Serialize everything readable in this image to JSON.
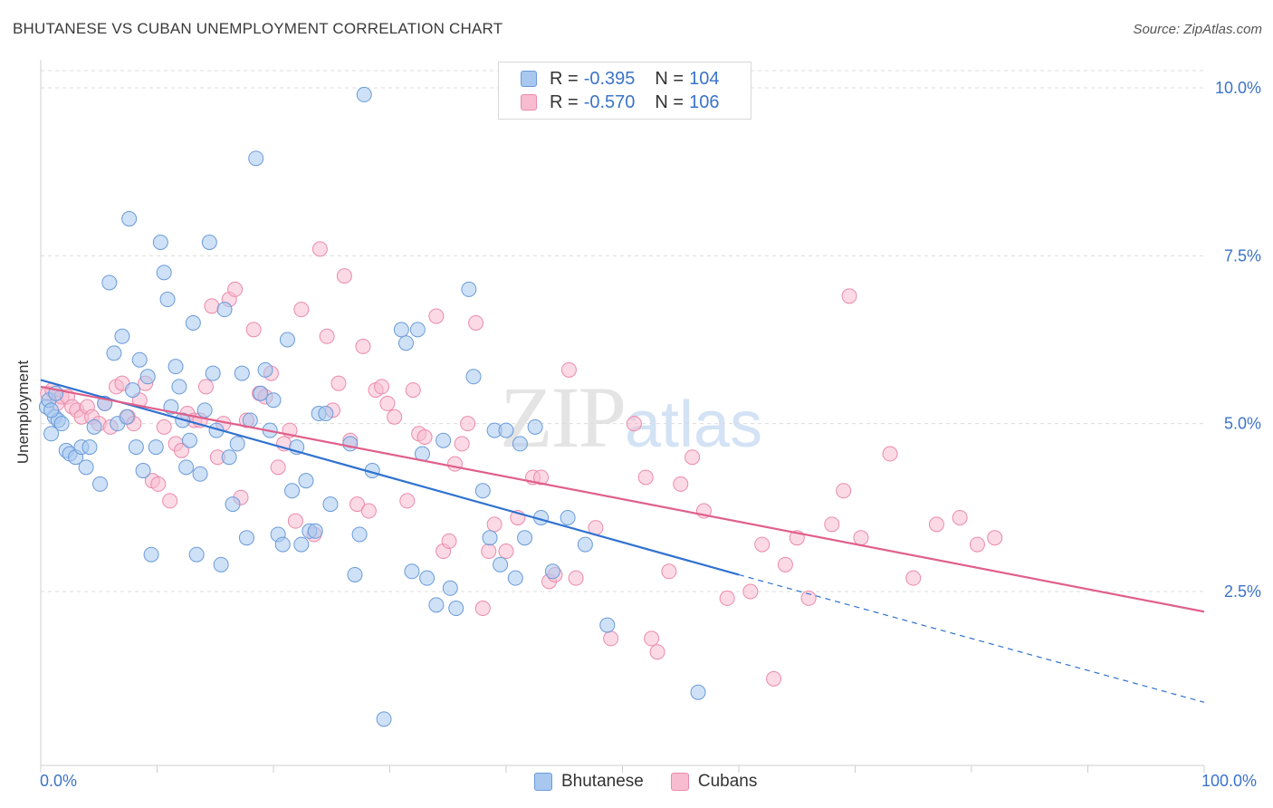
{
  "title": "BHUTANESE VS CUBAN UNEMPLOYMENT CORRELATION CHART",
  "source": "Source: ZipAtlas.com",
  "watermark": {
    "zip": "ZIP",
    "atlas": "atlas"
  },
  "legend_top": [
    {
      "r_label": "R = ",
      "r_value": "-0.395",
      "n_label": "N = ",
      "n_value": "104"
    },
    {
      "r_label": "R = ",
      "r_value": "-0.570",
      "n_label": "N = ",
      "n_value": "106"
    }
  ],
  "colors": {
    "bhutanese_fill": "#a8c8f0",
    "bhutanese_stroke": "#6a9bd8",
    "bhutanese_line": "#2f72d0",
    "cubans_fill": "#f8bcd0",
    "cubans_stroke": "#ec8aaa",
    "cubans_line": "#e0608a",
    "grid": "#dcdcdc",
    "tick_text": "#3b73c9"
  },
  "chart_data": {
    "type": "scatter",
    "title": "BHUTANESE VS CUBAN UNEMPLOYMENT CORRELATION CHART",
    "xlabel": "",
    "ylabel": "Unemployment",
    "xlim": [
      0,
      100
    ],
    "ylim": [
      0,
      10.5
    ],
    "x_tick_labels": [
      "0.0%",
      "100.0%"
    ],
    "y_ticks": [
      2.5,
      5.0,
      7.5,
      10.0
    ],
    "y_tick_labels": [
      "2.5%",
      "5.0%",
      "7.5%",
      "10.0%"
    ],
    "grid": "horizontal dashed",
    "legend": "top-center and bottom-center",
    "series": [
      {
        "name": "Bhutanese",
        "r": -0.395,
        "n": 104,
        "trend": {
          "x0": 0,
          "y0": 5.65,
          "x1": 60,
          "y1": 2.75,
          "dash_to_x": 100,
          "dash_to_y": 0.85
        },
        "points": [
          [
            0.5,
            5.25
          ],
          [
            0.7,
            5.35
          ],
          [
            0.9,
            4.85
          ],
          [
            1.2,
            5.1
          ],
          [
            1.5,
            5.05
          ],
          [
            1.8,
            5.0
          ],
          [
            2.2,
            4.6
          ],
          [
            2.5,
            4.55
          ],
          [
            3.0,
            4.5
          ],
          [
            3.5,
            4.65
          ],
          [
            3.9,
            4.35
          ],
          [
            4.2,
            4.65
          ],
          [
            4.6,
            4.95
          ],
          [
            5.1,
            4.1
          ],
          [
            5.5,
            5.3
          ],
          [
            5.9,
            7.1
          ],
          [
            6.3,
            6.05
          ],
          [
            6.6,
            5.0
          ],
          [
            7.0,
            6.3
          ],
          [
            7.4,
            5.1
          ],
          [
            7.6,
            8.05
          ],
          [
            7.9,
            5.5
          ],
          [
            8.2,
            4.65
          ],
          [
            8.5,
            5.95
          ],
          [
            8.8,
            4.3
          ],
          [
            9.2,
            5.7
          ],
          [
            9.5,
            3.05
          ],
          [
            9.9,
            4.65
          ],
          [
            10.3,
            7.7
          ],
          [
            10.6,
            7.25
          ],
          [
            10.9,
            6.85
          ],
          [
            11.2,
            5.25
          ],
          [
            11.6,
            5.85
          ],
          [
            11.9,
            5.55
          ],
          [
            12.2,
            5.05
          ],
          [
            12.5,
            4.35
          ],
          [
            12.8,
            4.75
          ],
          [
            13.1,
            6.5
          ],
          [
            13.4,
            3.05
          ],
          [
            13.7,
            4.25
          ],
          [
            14.1,
            5.2
          ],
          [
            14.5,
            7.7
          ],
          [
            14.8,
            5.75
          ],
          [
            15.1,
            4.9
          ],
          [
            15.5,
            2.9
          ],
          [
            15.8,
            6.7
          ],
          [
            16.2,
            4.5
          ],
          [
            16.5,
            3.8
          ],
          [
            16.9,
            4.7
          ],
          [
            17.3,
            5.75
          ],
          [
            17.7,
            3.3
          ],
          [
            18.0,
            5.05
          ],
          [
            18.5,
            8.95
          ],
          [
            18.9,
            5.45
          ],
          [
            19.3,
            5.8
          ],
          [
            19.7,
            4.9
          ],
          [
            20.0,
            5.35
          ],
          [
            20.4,
            3.35
          ],
          [
            20.8,
            3.2
          ],
          [
            21.2,
            6.25
          ],
          [
            21.6,
            4.0
          ],
          [
            22.0,
            4.65
          ],
          [
            22.4,
            3.2
          ],
          [
            22.8,
            4.15
          ],
          [
            23.1,
            3.4
          ],
          [
            23.6,
            3.4
          ],
          [
            23.9,
            5.15
          ],
          [
            24.5,
            5.15
          ],
          [
            24.9,
            3.8
          ],
          [
            26.6,
            4.7
          ],
          [
            27.0,
            2.75
          ],
          [
            27.4,
            3.35
          ],
          [
            27.8,
            9.9
          ],
          [
            28.5,
            4.3
          ],
          [
            29.5,
            0.6
          ],
          [
            31.0,
            6.4
          ],
          [
            31.4,
            6.2
          ],
          [
            31.9,
            2.8
          ],
          [
            32.4,
            6.4
          ],
          [
            32.8,
            4.55
          ],
          [
            33.2,
            2.7
          ],
          [
            34.0,
            2.3
          ],
          [
            34.6,
            4.75
          ],
          [
            35.2,
            2.55
          ],
          [
            35.7,
            2.25
          ],
          [
            36.8,
            7.0
          ],
          [
            37.2,
            5.7
          ],
          [
            38.0,
            4.0
          ],
          [
            38.6,
            3.3
          ],
          [
            39.0,
            4.9
          ],
          [
            39.5,
            2.9
          ],
          [
            40.0,
            4.9
          ],
          [
            40.8,
            2.7
          ],
          [
            41.2,
            4.7
          ],
          [
            41.6,
            3.3
          ],
          [
            42.5,
            4.95
          ],
          [
            43.0,
            3.6
          ],
          [
            44.0,
            2.8
          ],
          [
            45.3,
            3.6
          ],
          [
            46.8,
            3.2
          ],
          [
            56.5,
            1.0
          ],
          [
            48.7,
            2.0
          ],
          [
            0.9,
            5.2
          ],
          [
            1.3,
            5.45
          ]
        ]
      },
      {
        "name": "Cubans",
        "r": -0.57,
        "n": 106,
        "trend": {
          "x0": 0,
          "y0": 5.55,
          "x1": 100,
          "y1": 2.2
        },
        "points": [
          [
            0.6,
            5.45
          ],
          [
            1.0,
            5.5
          ],
          [
            1.4,
            5.3
          ],
          [
            1.8,
            5.4
          ],
          [
            2.3,
            5.4
          ],
          [
            2.7,
            5.25
          ],
          [
            3.1,
            5.2
          ],
          [
            3.5,
            5.1
          ],
          [
            4.0,
            5.25
          ],
          [
            4.4,
            5.1
          ],
          [
            5.0,
            5.0
          ],
          [
            5.5,
            5.3
          ],
          [
            6.0,
            4.95
          ],
          [
            6.5,
            5.55
          ],
          [
            7.0,
            5.6
          ],
          [
            7.5,
            5.1
          ],
          [
            8.0,
            5.0
          ],
          [
            8.5,
            5.35
          ],
          [
            9.0,
            5.6
          ],
          [
            9.6,
            4.15
          ],
          [
            10.1,
            4.1
          ],
          [
            10.6,
            4.95
          ],
          [
            11.1,
            3.85
          ],
          [
            11.6,
            4.7
          ],
          [
            12.1,
            4.6
          ],
          [
            12.6,
            5.15
          ],
          [
            13.2,
            5.05
          ],
          [
            13.7,
            5.05
          ],
          [
            14.2,
            5.55
          ],
          [
            14.7,
            6.75
          ],
          [
            15.2,
            4.5
          ],
          [
            15.7,
            5.0
          ],
          [
            16.2,
            6.85
          ],
          [
            16.7,
            7.0
          ],
          [
            17.2,
            3.9
          ],
          [
            17.7,
            5.05
          ],
          [
            18.3,
            6.4
          ],
          [
            18.8,
            5.45
          ],
          [
            19.3,
            5.4
          ],
          [
            19.8,
            5.75
          ],
          [
            20.4,
            4.35
          ],
          [
            20.9,
            4.7
          ],
          [
            21.4,
            4.9
          ],
          [
            21.9,
            3.55
          ],
          [
            22.4,
            6.7
          ],
          [
            23.5,
            3.35
          ],
          [
            24.0,
            7.6
          ],
          [
            24.6,
            6.3
          ],
          [
            25.1,
            5.2
          ],
          [
            25.6,
            5.6
          ],
          [
            26.1,
            7.2
          ],
          [
            26.6,
            4.75
          ],
          [
            27.2,
            3.8
          ],
          [
            27.7,
            6.15
          ],
          [
            28.2,
            3.7
          ],
          [
            28.8,
            5.5
          ],
          [
            29.3,
            5.55
          ],
          [
            29.8,
            5.3
          ],
          [
            30.4,
            5.1
          ],
          [
            31.5,
            3.85
          ],
          [
            32.0,
            5.5
          ],
          [
            32.5,
            4.85
          ],
          [
            33.0,
            4.8
          ],
          [
            34.0,
            6.6
          ],
          [
            34.6,
            3.1
          ],
          [
            35.1,
            3.25
          ],
          [
            35.6,
            4.4
          ],
          [
            36.2,
            4.7
          ],
          [
            36.7,
            5.0
          ],
          [
            37.4,
            6.5
          ],
          [
            38.0,
            2.25
          ],
          [
            38.5,
            3.1
          ],
          [
            39.0,
            3.5
          ],
          [
            40.0,
            3.1
          ],
          [
            41.0,
            3.6
          ],
          [
            42.3,
            4.2
          ],
          [
            43.0,
            4.2
          ],
          [
            43.7,
            2.65
          ],
          [
            44.2,
            2.75
          ],
          [
            45.4,
            5.8
          ],
          [
            46.0,
            2.7
          ],
          [
            47.7,
            3.45
          ],
          [
            49.0,
            1.8
          ],
          [
            51.0,
            5.0
          ],
          [
            52.0,
            4.2
          ],
          [
            52.5,
            1.8
          ],
          [
            53.0,
            1.6
          ],
          [
            54.0,
            2.8
          ],
          [
            55.0,
            4.1
          ],
          [
            56.0,
            4.5
          ],
          [
            57.0,
            3.7
          ],
          [
            59.0,
            2.4
          ],
          [
            61.0,
            2.5
          ],
          [
            62.0,
            3.2
          ],
          [
            63.0,
            1.2
          ],
          [
            64.0,
            2.9
          ],
          [
            65.0,
            3.3
          ],
          [
            66.0,
            2.4
          ],
          [
            68.0,
            3.5
          ],
          [
            69.0,
            4.0
          ],
          [
            69.5,
            6.9
          ],
          [
            70.5,
            3.3
          ],
          [
            73.0,
            4.55
          ],
          [
            75.0,
            2.7
          ],
          [
            77.0,
            3.5
          ],
          [
            79.0,
            3.6
          ]
        ]
      }
    ]
  },
  "extra_cubans": [
    [
      80.5,
      3.2
    ],
    [
      82.0,
      3.3
    ]
  ],
  "bottom_legend": [
    "Bhutanese",
    "Cubans"
  ]
}
